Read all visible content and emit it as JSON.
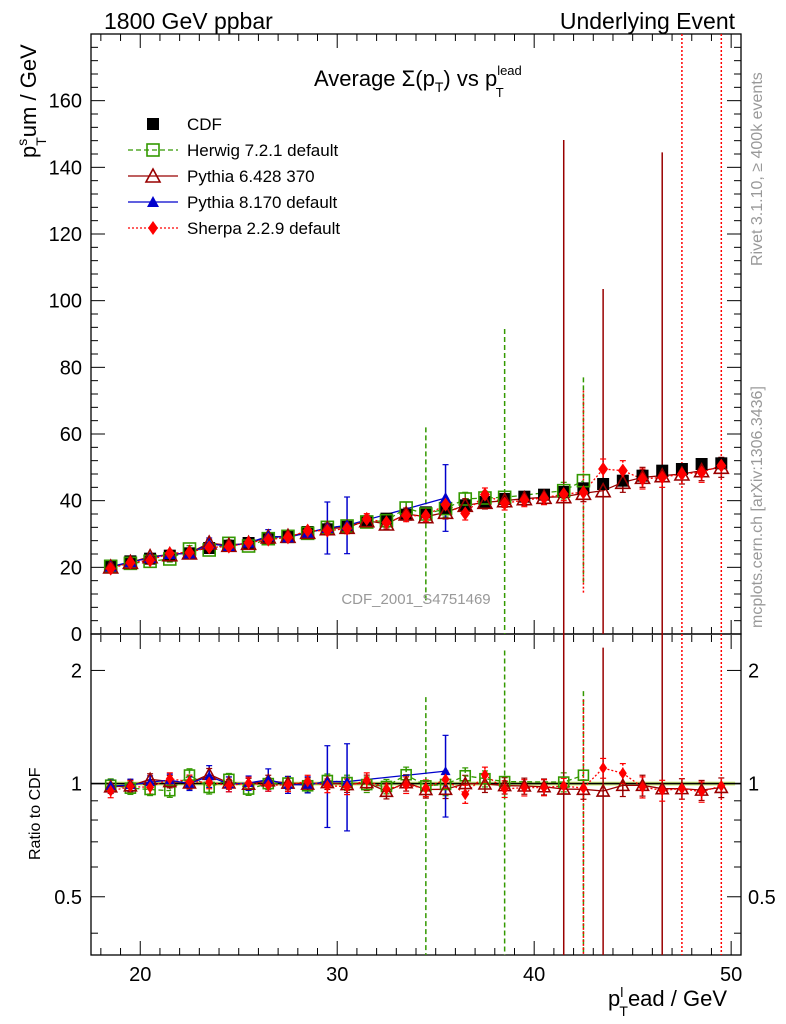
{
  "header": {
    "left": "1800 GeV ppbar",
    "right": "Underlying Event"
  },
  "side": {
    "rivet": "Rivet 3.1.10, ≥ 400k events",
    "mcplots": "mcplots.cern.ch [arXiv:1306.3436]"
  },
  "chart_data": {
    "type": "scatter",
    "title": "Average Σ(p_T) vs p_T^lead",
    "title_parts": {
      "main": "Average Σ(p",
      "sub1": "T",
      "mid": ") vs p",
      "sup": "lead",
      "sub2": "T"
    },
    "watermark": "CDF_2001_S4751469",
    "xlabel": {
      "main": "p",
      "sub": "T",
      "sup": "l",
      "rest": "ead / GeV"
    },
    "ylabel": {
      "main": "p",
      "sub": "T",
      "sup": "s",
      "rest": "um / GeV"
    },
    "ratio_ylabel": "Ratio to CDF",
    "xlim": [
      17.5,
      50.5
    ],
    "ylim": [
      0,
      180
    ],
    "ratio_ylim": [
      0.35,
      2.5
    ],
    "x_ticks": [
      "20",
      "30",
      "40",
      "50"
    ],
    "y_ticks": [
      "0",
      "20",
      "40",
      "60",
      "80",
      "100",
      "120",
      "140",
      "160"
    ],
    "ratio_ticks": [
      "0.5",
      "1",
      "2"
    ],
    "legend": [
      "CDF",
      "Herwig 7.2.1 default",
      "Pythia 6.428 370",
      "Pythia 8.170 default",
      "Sherpa 2.2.9 default"
    ],
    "x": [
      18.5,
      19.5,
      20.5,
      21.5,
      22.5,
      23.5,
      24.5,
      25.5,
      26.5,
      27.5,
      28.5,
      29.5,
      30.5,
      31.5,
      32.5,
      33.5,
      34.5,
      35.5,
      36.5,
      37.5,
      38.5,
      39.5,
      40.5,
      41.5,
      42.5,
      43.5,
      44.5,
      45.5,
      46.5,
      47.5,
      48.5,
      49.5
    ],
    "series": [
      {
        "name": "CDF",
        "color": "#000000",
        "values": [
          20.5,
          21.8,
          22.6,
          23.5,
          24.2,
          25.8,
          26.5,
          27.3,
          28.6,
          29.2,
          30.6,
          31.4,
          32.2,
          33.8,
          34.6,
          35.8,
          36.5,
          37.8,
          38.6,
          39.6,
          40.5,
          41.2,
          41.8,
          42.6,
          43.7,
          45.0,
          46.0,
          47.5,
          49.0,
          49.5,
          51.0,
          51.2
        ],
        "errors": [
          0.3,
          0.3,
          0.3,
          0.3,
          0.3,
          0.3,
          0.3,
          0.3,
          0.3,
          0.3,
          0.3,
          0.3,
          0.3,
          0.3,
          0.3,
          0.3,
          0.3,
          0.3,
          0.3,
          0.3,
          0.3,
          0.3,
          0.3,
          0.3,
          0.3,
          0.3,
          0.3,
          0.3,
          0.3,
          0.3,
          0.3,
          0.3
        ]
      },
      {
        "name": "Herwig 7.2.1 default",
        "color": "#339900",
        "values": [
          20.3,
          21.2,
          21.8,
          22.5,
          25.5,
          25.2,
          27.2,
          26.4,
          28.6,
          29.3,
          30.2,
          32.0,
          32.4,
          33.6,
          34.0,
          37.8,
          36.0,
          37.6,
          40.5,
          40.8,
          41.0,
          null,
          null,
          43.0,
          46.0,
          null,
          null,
          null,
          null,
          null,
          null,
          null
        ],
        "errors": [
          0.8,
          0.8,
          0.8,
          0.9,
          1.0,
          1.0,
          1.0,
          1.0,
          1.0,
          1.2,
          1.2,
          1.3,
          1.5,
          1.6,
          1.5,
          1.8,
          26.0,
          2.5,
          2.0,
          2.0,
          50.5,
          null,
          null,
          2.5,
          31.0,
          null,
          null,
          null,
          null,
          null,
          null,
          null
        ]
      },
      {
        "name": "Pythia 6.428 370",
        "color": "#990000",
        "values": [
          20.1,
          21.5,
          23.2,
          23.8,
          24.3,
          27.3,
          26.6,
          27.2,
          29.1,
          29.3,
          30.5,
          31.6,
          32.0,
          34.0,
          33.0,
          36.0,
          35.2,
          36.5,
          38.6,
          39.5,
          40.0,
          40.6,
          41.0,
          41.2,
          42.2,
          43.0,
          45.5,
          47.0,
          47.5,
          48.0,
          49.0,
          50.0
        ],
        "errors": [
          0.8,
          0.8,
          0.8,
          0.9,
          1.0,
          1.0,
          1.0,
          1.0,
          1.0,
          1.2,
          1.2,
          1.3,
          1.5,
          1.6,
          1.5,
          1.8,
          1.8,
          2.0,
          2.0,
          2.0,
          2.0,
          2.0,
          2.0,
          107.0,
          2.5,
          60.5,
          3.0,
          3.0,
          97.0,
          3.0,
          3.0,
          3.0
        ]
      },
      {
        "name": "Pythia 8.170 default",
        "color": "#0000cc",
        "values": [
          20.2,
          21.6,
          22.8,
          24.0,
          24.2,
          27.0,
          26.4,
          27.4,
          29.3,
          29.0,
          30.4,
          31.8,
          32.6,
          null,
          null,
          null,
          null,
          40.8,
          null,
          null,
          null,
          null,
          null,
          null,
          null,
          null,
          null,
          null,
          null,
          null,
          null,
          null
        ],
        "errors": [
          0.8,
          0.8,
          0.9,
          0.9,
          1.0,
          1.8,
          1.2,
          1.2,
          2.0,
          1.5,
          1.5,
          7.8,
          8.5,
          null,
          null,
          null,
          null,
          10.0,
          null,
          null,
          null,
          null,
          null,
          null,
          null,
          null,
          null,
          null,
          null,
          null,
          null,
          null
        ]
      },
      {
        "name": "Sherpa 2.2.9 default",
        "color": "#ff0000",
        "values": [
          19.6,
          21.4,
          22.1,
          24.2,
          24.5,
          26.0,
          26.2,
          27.4,
          28.3,
          29.0,
          31.0,
          31.0,
          31.6,
          34.5,
          33.5,
          35.5,
          35.5,
          38.8,
          36.2,
          41.8,
          39.2,
          40.2,
          40.8,
          42.0,
          42.5,
          49.5,
          49.0,
          46.5,
          47.0,
          48.0,
          48.5,
          50.5
        ],
        "errors": [
          0.8,
          0.8,
          0.9,
          0.9,
          1.0,
          1.0,
          1.0,
          1.0,
          1.0,
          1.2,
          1.2,
          1.3,
          1.5,
          1.6,
          1.5,
          1.8,
          1.8,
          2.0,
          2.0,
          2.0,
          2.0,
          2.0,
          2.0,
          2.0,
          30.5,
          3.0,
          3.0,
          3.0,
          3.0,
          150.0,
          3.0,
          150.0
        ]
      }
    ]
  }
}
